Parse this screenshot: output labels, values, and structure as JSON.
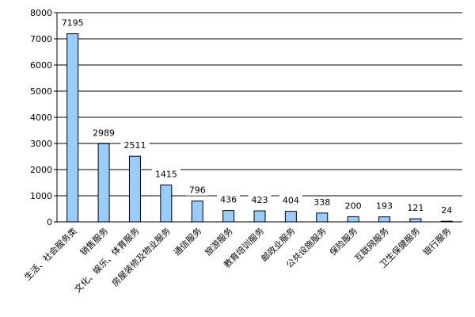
{
  "chart_data": {
    "type": "bar",
    "categories": [
      "生活、社会服务类",
      "销售服务",
      "文化、娱乐、体育服务",
      "房屋装修及物业服务",
      "通信服务",
      "旅游服务",
      "教育培训服务",
      "邮政业服务",
      "公共设施服务",
      "保险服务",
      "互联网服务",
      "卫生保健服务",
      "银行服务"
    ],
    "values": [
      7195,
      2989,
      2511,
      1415,
      796,
      436,
      423,
      404,
      338,
      200,
      193,
      121,
      24
    ],
    "value_labels": [
      "7195",
      "2989",
      "2511",
      "1415",
      "796",
      "436",
      "423",
      "404",
      "338",
      "200",
      "193",
      "121",
      "24"
    ],
    "ylim": [
      0,
      8000
    ],
    "yticks": [
      "0",
      "1000",
      "2000",
      "3000",
      "4000",
      "5000",
      "6000",
      "7000",
      "8000"
    ],
    "grid": true,
    "bar_color": "#99ccff",
    "bar_stroke": "#000000",
    "xlabel": "",
    "ylabel": "",
    "title": ""
  }
}
